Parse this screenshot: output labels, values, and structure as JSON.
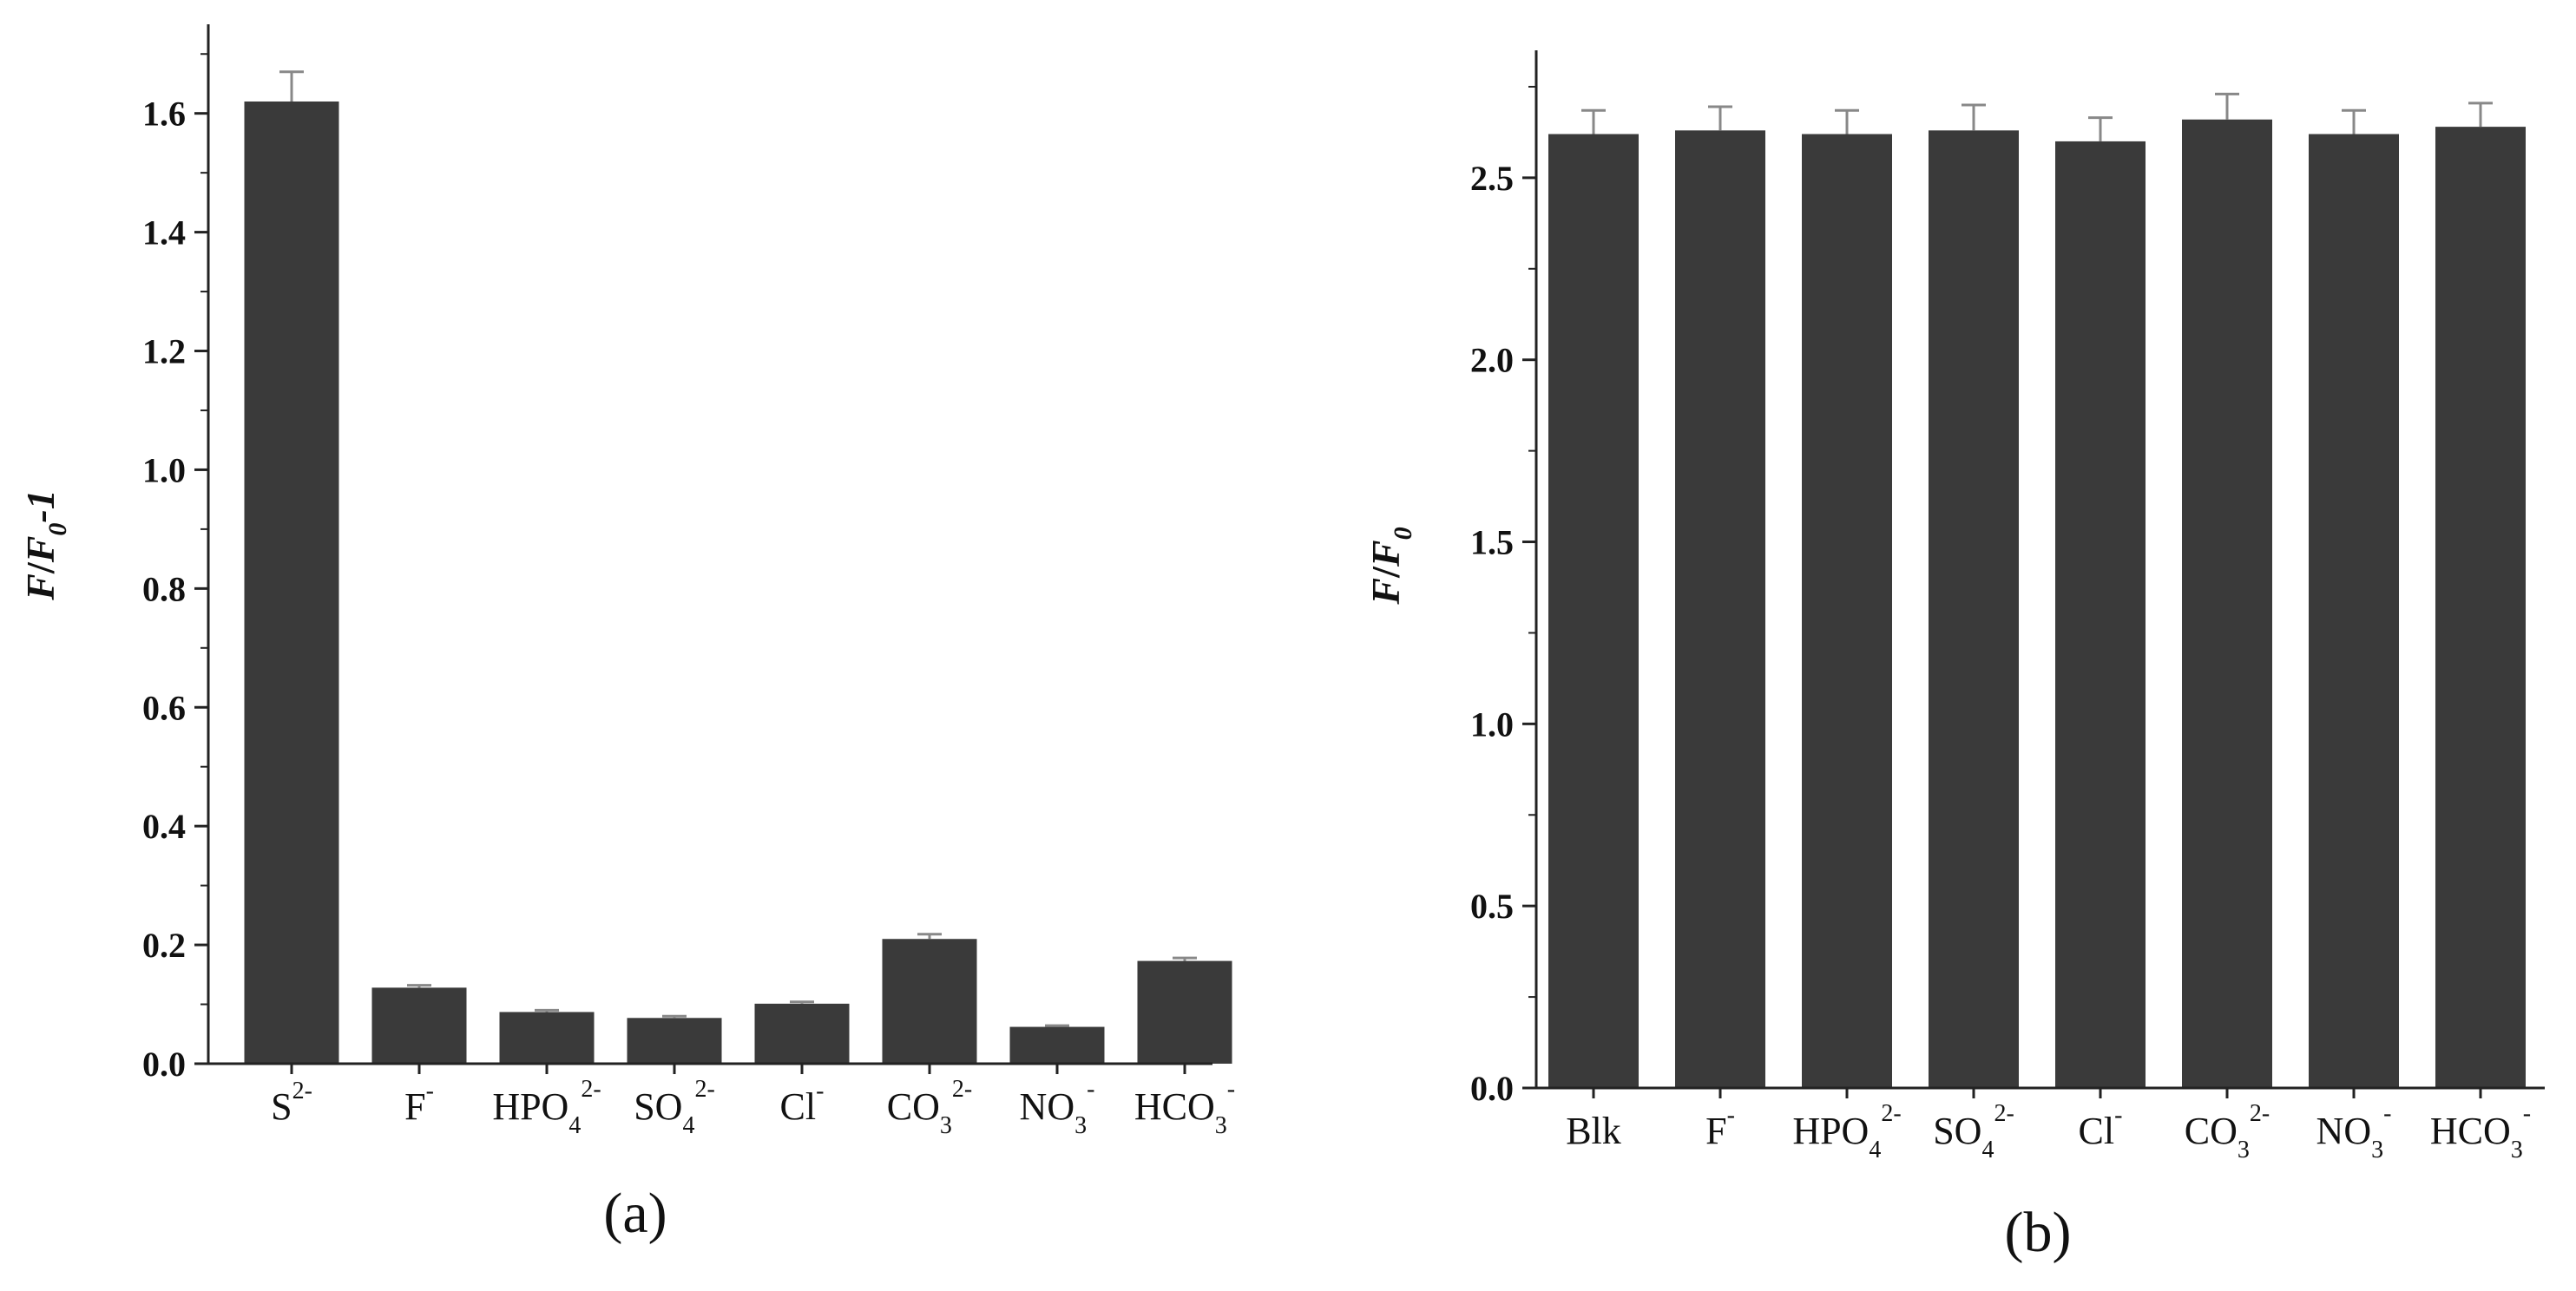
{
  "chart_data": [
    {
      "id": "a",
      "type": "bar",
      "caption": "(a)",
      "ylabel": {
        "italic1": "F",
        "slash": "/",
        "italic2": "F",
        "sub": "0",
        "tail": "-1"
      },
      "xlabel": "",
      "ylim": [
        0,
        1.75
      ],
      "yticks": [
        0.0,
        0.2,
        0.4,
        0.6,
        0.8,
        1.0,
        1.2,
        1.4,
        1.6
      ],
      "ytick_labels": [
        "0.0",
        "0.2",
        "0.4",
        "0.6",
        "0.8",
        "1.0",
        "1.2",
        "1.4",
        "1.6"
      ],
      "categories": [
        {
          "base": "S",
          "sub": "",
          "sup": "2-"
        },
        {
          "base": "F",
          "sub": "",
          "sup": "-"
        },
        {
          "base": "HPO",
          "sub": "4",
          "sup": "2-"
        },
        {
          "base": "SO",
          "sub": "4",
          "sup": "2-"
        },
        {
          "base": "Cl",
          "sub": "",
          "sup": "-"
        },
        {
          "base": "CO",
          "sub": "3",
          "sup": "2-"
        },
        {
          "base": "NO",
          "sub": "3",
          "sup": "-"
        },
        {
          "base": "HCO",
          "sub": "3",
          "sup": "-"
        }
      ],
      "values": [
        1.62,
        0.128,
        0.087,
        0.077,
        0.101,
        0.21,
        0.062,
        0.173
      ],
      "errors": [
        0.05,
        0.004,
        0.003,
        0.003,
        0.003,
        0.008,
        0.002,
        0.005
      ],
      "bar_color": "#3a3a3a",
      "error_color": "#888888",
      "grid": false
    },
    {
      "id": "b",
      "type": "bar",
      "caption": "(b)",
      "ylabel": {
        "italic1": "F",
        "slash": "/",
        "italic2": "F",
        "sub": "0",
        "tail": ""
      },
      "xlabel": "",
      "ylim": [
        0,
        2.85
      ],
      "yticks": [
        0.0,
        0.5,
        1.0,
        1.5,
        2.0,
        2.5
      ],
      "ytick_labels": [
        "0.0",
        "0.5",
        "1.0",
        "1.5",
        "2.0",
        "2.5"
      ],
      "categories": [
        {
          "base": "Blk",
          "sub": "",
          "sup": ""
        },
        {
          "base": "F",
          "sub": "",
          "sup": "-"
        },
        {
          "base": "HPO",
          "sub": "4",
          "sup": "2-"
        },
        {
          "base": "SO",
          "sub": "4",
          "sup": "2-"
        },
        {
          "base": "Cl",
          "sub": "",
          "sup": "-"
        },
        {
          "base": "CO",
          "sub": "3",
          "sup": "2-"
        },
        {
          "base": "NO",
          "sub": "3",
          "sup": "-"
        },
        {
          "base": "HCO",
          "sub": "3",
          "sup": "-"
        }
      ],
      "values": [
        2.62,
        2.63,
        2.62,
        2.63,
        2.6,
        2.66,
        2.62,
        2.64
      ],
      "errors": [
        0.065,
        0.065,
        0.065,
        0.07,
        0.065,
        0.07,
        0.065,
        0.065
      ],
      "bar_color": "#3a3a3a",
      "error_color": "#888888",
      "grid": false
    }
  ]
}
